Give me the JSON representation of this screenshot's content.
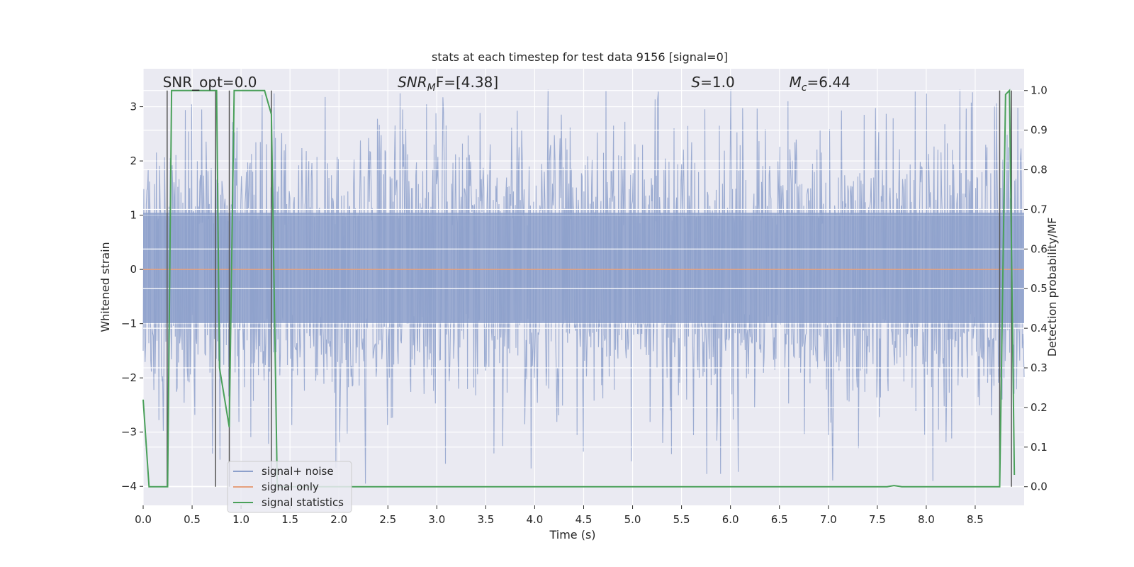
{
  "chart_data": {
    "type": "line",
    "title": "stats at each timestep for test data 9156 [signal=0]",
    "xlabel": "Time (s)",
    "ylabel": "Whitened strain",
    "y2label": "Detection probability/MF",
    "xlim": [
      0,
      9.0
    ],
    "ylim": [
      -4.35,
      3.7
    ],
    "y2lim": [
      -0.047,
      1.055
    ],
    "xticks": [
      0.0,
      0.5,
      1.0,
      1.5,
      2.0,
      2.5,
      3.0,
      3.5,
      4.0,
      4.5,
      5.0,
      5.5,
      6.0,
      6.5,
      7.0,
      7.5,
      8.0,
      8.5
    ],
    "xtick_labels": [
      "0.0",
      "0.5",
      "1.0",
      "1.5",
      "2.0",
      "2.5",
      "3.0",
      "3.5",
      "4.0",
      "4.5",
      "5.0",
      "5.5",
      "6.0",
      "6.5",
      "7.0",
      "7.5",
      "8.0",
      "8.5"
    ],
    "yticks": [
      -4,
      -3,
      -2,
      -1,
      0,
      1,
      2,
      3
    ],
    "ytick_labels": [
      "−4",
      "−3",
      "−2",
      "−1",
      "0",
      "1",
      "2",
      "3"
    ],
    "y2ticks": [
      0.0,
      0.1,
      0.2,
      0.3,
      0.4,
      0.5,
      0.6,
      0.7,
      0.8,
      0.9,
      1.0
    ],
    "y2tick_labels": [
      "0.0",
      "0.1",
      "0.2",
      "0.3",
      "0.4",
      "0.5",
      "0.6",
      "0.7",
      "0.8",
      "0.9",
      "1.0"
    ],
    "grid": true,
    "annotations": [
      {
        "text": "SNR_opt=0.0",
        "x": 0.2,
        "y": 3.45
      },
      {
        "text_main": "SNR",
        "text_sub": "M",
        "text_tail": "F=[4.38]",
        "x": 2.6,
        "y": 3.45
      },
      {
        "text_main": "S",
        "text_tail": "=1.0",
        "x": 5.6,
        "y": 3.45
      },
      {
        "text_main": "M",
        "text_sub": "c",
        "text_tail": "=6.44",
        "x": 6.6,
        "y": 3.45
      }
    ],
    "legend_position": "lower-left",
    "series": [
      {
        "name": "signal+ noise",
        "color": "#8da0cb",
        "noise_envelope": {
          "typical_low": -1.8,
          "typical_high": 1.9,
          "min": -4.0,
          "max": 3.35
        }
      },
      {
        "name": "signal only",
        "color": "#e5a07c",
        "x": [
          0,
          9.0
        ],
        "y": [
          0,
          0
        ]
      },
      {
        "name": "signal statistics",
        "color": "#4aa05a",
        "axis": "right",
        "x": [
          0.0,
          0.06,
          0.25,
          0.29,
          0.75,
          0.78,
          0.88,
          0.93,
          1.24,
          1.31,
          1.37,
          7.4,
          7.6,
          7.67,
          7.75,
          8.75,
          8.81,
          8.85,
          8.9
        ],
        "y": [
          0.22,
          0.0,
          0.0,
          1.0,
          1.0,
          0.3,
          0.15,
          1.0,
          1.0,
          0.94,
          0.0,
          0.0,
          0.0,
          0.003,
          0.0,
          0.0,
          0.99,
          1.0,
          0.03
        ]
      }
    ],
    "vlines": [
      0.245,
      0.74,
      0.88,
      1.31,
      8.75,
      8.87
    ]
  }
}
